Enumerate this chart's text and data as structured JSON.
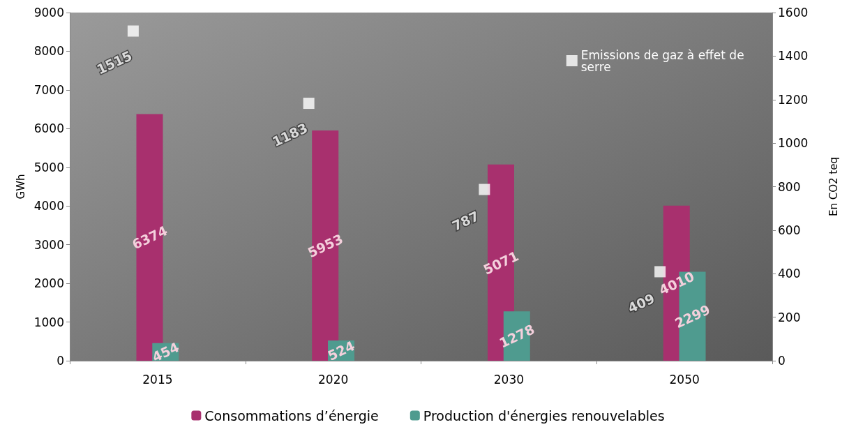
{
  "chart_data": {
    "type": "bar",
    "ylabel": "GWh",
    "y2label": "En CO2 teq",
    "categories": [
      "2015",
      "2020",
      "2030",
      "2050"
    ],
    "series": [
      {
        "name": "Consommations d’énergie",
        "color": "#a8306e",
        "values": [
          6374,
          5953,
          5071,
          4010
        ]
      },
      {
        "name": "Production d'énergies renouvelables",
        "color": "#4f9b8f",
        "values": [
          454,
          524,
          1278,
          2299
        ]
      },
      {
        "name": "Emissions de gaz à effet de serre",
        "type": "scatter",
        "axis": "y2",
        "color": "#ffffff",
        "marker": "square",
        "values": [
          1515,
          1183,
          787,
          409
        ]
      }
    ],
    "ylim": [
      0,
      9000
    ],
    "yticks": [
      0,
      1000,
      2000,
      3000,
      4000,
      5000,
      6000,
      7000,
      8000,
      9000
    ],
    "y2lim": [
      0,
      1600
    ],
    "y2ticks": [
      0,
      200,
      400,
      600,
      800,
      1000,
      1200,
      1400,
      1600
    ],
    "data_labels": true,
    "legend": "bottom",
    "grid": false
  }
}
